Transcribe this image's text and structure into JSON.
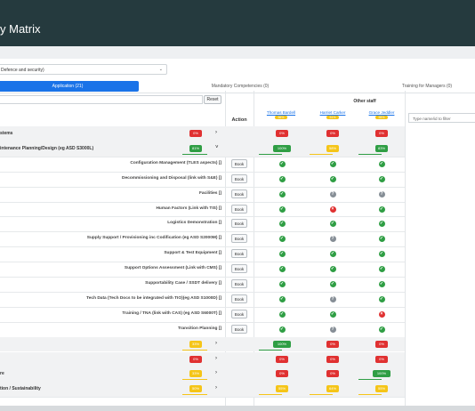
{
  "app": {
    "title": "y Matrix"
  },
  "select": {
    "value": "Defence and security)"
  },
  "tabs": [
    {
      "label": "Application (21)",
      "active": true
    },
    {
      "label": "Mandatory Competencies (0)",
      "active": false
    },
    {
      "label": "Training for Managers (0)",
      "active": false
    }
  ],
  "filter": {
    "reset_label": "Reset"
  },
  "table": {
    "action_header": "Action",
    "other_staff_label": "Other staff",
    "staff_filter_placeholder": "Type name/id to filter",
    "book_label": "Book",
    "staff": [
      {
        "name": "Thomas Bardell",
        "pct": "56%"
      },
      {
        "name": "Harriet Carker",
        "pct": "51%"
      },
      {
        "name": "Grace Jeddler",
        "pct": "55%"
      }
    ],
    "groups_top": [
      {
        "label": "stems",
        "overall": {
          "text": "0%",
          "color": "red"
        },
        "staff": [
          {
            "text": "0%",
            "color": "red"
          },
          {
            "text": "0%",
            "color": "red"
          },
          {
            "text": "0%",
            "color": "red"
          }
        ]
      },
      {
        "label": "intenance Planning/Design (eg ASD S3000L)",
        "overall": {
          "text": "81%",
          "color": "green"
        },
        "staff": [
          {
            "text": "100%",
            "color": "green"
          },
          {
            "text": "58%",
            "color": "yellow"
          },
          {
            "text": "83%",
            "color": "green"
          }
        ]
      }
    ],
    "items": [
      {
        "label": "Configuration Management (TLES aspects) []",
        "status": [
          "ok",
          "ok",
          "ok"
        ]
      },
      {
        "label": "Decommissioning and Disposal (link with S&E) []",
        "status": [
          "ok",
          "ok",
          "ok"
        ]
      },
      {
        "label": "Facilities []",
        "status": [
          "ok",
          "q",
          "q"
        ]
      },
      {
        "label": "Human Factors (Link with TIS) []",
        "status": [
          "ok",
          "x",
          "ok"
        ]
      },
      {
        "label": "Logistics Demonstration []",
        "status": [
          "ok",
          "ok",
          "ok"
        ]
      },
      {
        "label": "Supply Support / Provisioning inc Codification (eg ASD S2000M) []",
        "status": [
          "ok",
          "q",
          "ok"
        ]
      },
      {
        "label": "Support & Test Equipment []",
        "status": [
          "ok",
          "ok",
          "ok"
        ]
      },
      {
        "label": "Support Options Assessment (Link with CMS) []",
        "status": [
          "ok",
          "ok",
          "ok"
        ]
      },
      {
        "label": "Supportability Case / SSDT delivery []",
        "status": [
          "ok",
          "ok",
          "ok"
        ]
      },
      {
        "label": "Tech Data (Tech Docs to be integrated with TIO)(eg ASD S1000D) []",
        "status": [
          "ok",
          "q",
          "ok"
        ]
      },
      {
        "label": "Training / TNA (link with CAS) (eg ASD S6000T) []",
        "status": [
          "ok",
          "ok",
          "x"
        ]
      },
      {
        "label": "Transition Planning []",
        "status": [
          "ok",
          "q",
          "ok"
        ]
      }
    ],
    "groups_bottom": [
      {
        "label": "",
        "overall": {
          "text": "33%",
          "color": "yellow"
        },
        "staff": [
          {
            "text": "100%",
            "color": "green"
          },
          {
            "text": "0%",
            "color": "red"
          },
          {
            "text": "0%",
            "color": "red"
          }
        ]
      },
      {
        "label": "",
        "overall": {
          "text": "0%",
          "color": "red"
        },
        "staff": [
          {
            "text": "0%",
            "color": "red"
          },
          {
            "text": "0%",
            "color": "red"
          },
          {
            "text": "0%",
            "color": "red"
          }
        ]
      },
      {
        "label": "re",
        "overall": {
          "text": "33%",
          "color": "yellow"
        },
        "staff": [
          {
            "text": "0%",
            "color": "red"
          },
          {
            "text": "0%",
            "color": "red"
          },
          {
            "text": "100%",
            "color": "green"
          }
        ]
      },
      {
        "label": "tion / Sustainability",
        "overall": {
          "text": "50%",
          "color": "yellow"
        },
        "staff": [
          {
            "text": "55%",
            "color": "yellow"
          },
          {
            "text": "64%",
            "color": "yellow"
          },
          {
            "text": "55%",
            "color": "yellow"
          }
        ]
      }
    ]
  }
}
